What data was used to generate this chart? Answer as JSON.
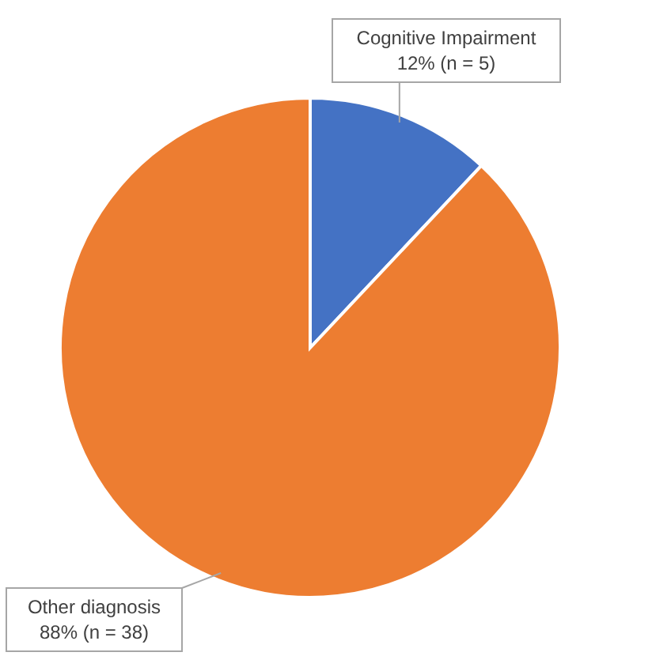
{
  "chart_data": {
    "type": "pie",
    "categories": [
      "Cognitive Impairment",
      "Other diagnosis"
    ],
    "values": [
      12,
      88
    ],
    "colors": [
      "#4472c4",
      "#ed7d31"
    ],
    "value_labels": [
      "12% (n = 5)",
      "88% (n = 38)"
    ]
  }
}
